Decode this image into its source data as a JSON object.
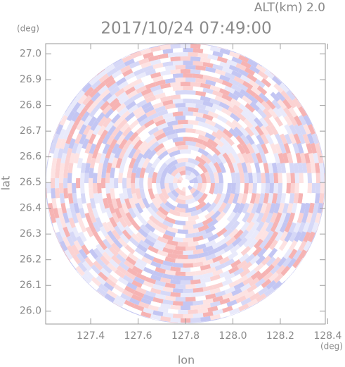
{
  "chart_data": {
    "type": "radar-ppi",
    "title": "2017/10/24 07:49:00",
    "subtitle": "ALT(km) 2.0",
    "x_label": "lon",
    "y_label": "lat",
    "x_unit": "(deg)",
    "y_unit": "(deg)",
    "xlim": [
      127.21,
      128.39
    ],
    "ylim": [
      25.95,
      27.04
    ],
    "xticks": [
      127.4,
      127.6,
      127.8,
      {
        "value": 128,
        "label": "128.0"
      },
      128.2,
      128.4
    ],
    "yticks": [
      {
        "value": 26,
        "label": "26.0"
      },
      26.1,
      26.2,
      26.3,
      26.4,
      26.5,
      26.6,
      26.7,
      26.8,
      26.9,
      {
        "value": 27,
        "label": "27.0"
      }
    ]
  }
}
